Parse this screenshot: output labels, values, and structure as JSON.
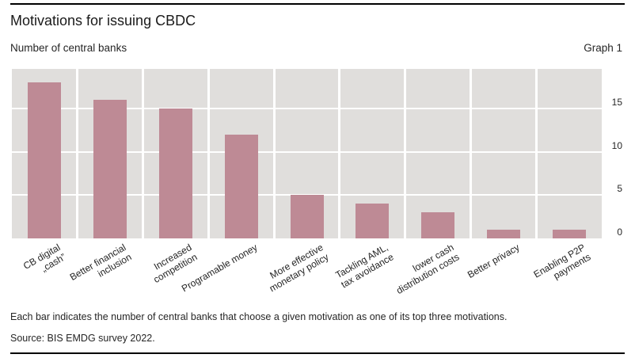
{
  "header": {
    "title": "Motivations for issuing CBDC",
    "axis_title": "Number of central banks",
    "graph_label": "Graph 1"
  },
  "chart_data": {
    "type": "bar",
    "title": "Motivations for issuing CBDC",
    "ylabel": "Number of central banks",
    "categories": [
      "CB digital\n„cash”",
      "Better financial\ninclusion",
      "Increased\ncompetition",
      "Programable money",
      "More effective\nmonetary policy",
      "Tackling AML,\ntax avoidance",
      "lower cash\ndistribution costs",
      "Better privacy",
      "Enabling P2P\npayments"
    ],
    "values": [
      18,
      16,
      15,
      12,
      5,
      4,
      3,
      1,
      1
    ],
    "yticks": [
      0,
      5,
      10,
      15
    ],
    "ylim": [
      0,
      19.6
    ],
    "grid": true,
    "legend_position": "none",
    "ytick_side": "right",
    "xlabel_rotation_deg": -30,
    "colors": {
      "bar": "#be8a95",
      "plot_background": "#e0dedc",
      "gridline": "#ffffff",
      "text": "#262626"
    }
  },
  "footer": {
    "note": "Each bar indicates the number of central banks that choose a given motivation as one of its top three motivations.",
    "source": "Source: BIS EMDG survey 2022."
  }
}
